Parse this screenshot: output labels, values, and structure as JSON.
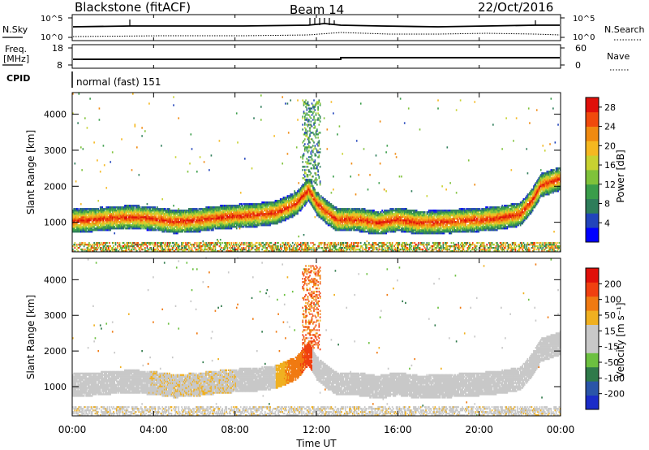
{
  "header": {
    "title": "Blackstone (fitACF)",
    "beam": "Beam 14",
    "date": "22/Oct/2016"
  },
  "noise_panel": {
    "left_label": "N.Sky",
    "right_label": "N.Search",
    "tick_top": "10^5",
    "tick_bottom": "10^0"
  },
  "freq_panel": {
    "left_label_1": "Freq.",
    "left_label_2": "[MHz]",
    "left_ticks": [
      "18",
      "8"
    ],
    "right_label": "Nave",
    "right_ticks": [
      "60",
      "0"
    ]
  },
  "cpid": {
    "label": "CPID",
    "text": "normal (fast) 151"
  },
  "colors": {
    "power_scale": [
      "#0000ff",
      "#2244bb",
      "#2e7d5a",
      "#3a9d4a",
      "#7fc23a",
      "#c8d230",
      "#f5b820",
      "#f08a10",
      "#f04a0c",
      "#e0100a"
    ],
    "velocity_scale": [
      "#1b2cc8",
      "#2a55a8",
      "#2f7a4a",
      "#6cc040",
      "#c8c8c8",
      "#c8c8c8",
      "#f0b020",
      "#f07a12",
      "#f04010",
      "#e0100a"
    ]
  },
  "chart_data": [
    {
      "type": "heatmap",
      "panel": "power",
      "ylabel": "Slant Range [km]",
      "xlabel": "Time UT",
      "x_ticks": [
        "00:00",
        "04:00",
        "08:00",
        "12:00",
        "16:00",
        "20:00",
        "00:00"
      ],
      "xlim_hours": [
        0,
        24
      ],
      "y_ticks": [
        "1000",
        "2000",
        "3000",
        "4000"
      ],
      "ylim_km": [
        180,
        4600
      ],
      "colorbar_label": "Power [dB]",
      "colorbar_ticks": [
        "4",
        "8",
        "12",
        "16",
        "20",
        "24",
        "28"
      ],
      "colorbar_range": [
        0,
        30
      ],
      "band_center_km": [
        [
          0,
          1020
        ],
        [
          1,
          1050
        ],
        [
          2,
          1100
        ],
        [
          3,
          1120
        ],
        [
          4,
          1080
        ],
        [
          5,
          1000
        ],
        [
          6,
          1030
        ],
        [
          7,
          1100
        ],
        [
          8,
          1150
        ],
        [
          9,
          1180
        ],
        [
          10,
          1250
        ],
        [
          11,
          1500
        ],
        [
          11.6,
          1900
        ],
        [
          12,
          1500
        ],
        [
          12.5,
          1250
        ],
        [
          13,
          1050
        ],
        [
          14,
          1060
        ],
        [
          15,
          960
        ],
        [
          16,
          1060
        ],
        [
          17,
          970
        ],
        [
          18,
          980
        ],
        [
          19,
          1020
        ],
        [
          20,
          1050
        ],
        [
          21,
          1100
        ],
        [
          22,
          1200
        ],
        [
          22.6,
          1600
        ],
        [
          23,
          2000
        ],
        [
          24,
          2200
        ]
      ],
      "band_halfwidth_km": 330
    },
    {
      "type": "heatmap",
      "panel": "velocity",
      "ylabel": "Slant Range [km]",
      "xlabel": "Time UT",
      "x_ticks": [
        "00:00",
        "04:00",
        "08:00",
        "12:00",
        "16:00",
        "20:00",
        "00:00"
      ],
      "xlim_hours": [
        0,
        24
      ],
      "y_ticks": [
        "1000",
        "2000",
        "3000",
        "4000"
      ],
      "ylim_km": [
        180,
        4600
      ],
      "colorbar_label": "Velocity [m s⁻¹]",
      "colorbar_ticks": [
        "200",
        "100",
        "50",
        "15",
        "-15",
        "-50",
        "-100",
        "-200"
      ],
      "colorbar_range": [
        -250,
        250
      ]
    }
  ],
  "xaxis_label": "Time UT"
}
